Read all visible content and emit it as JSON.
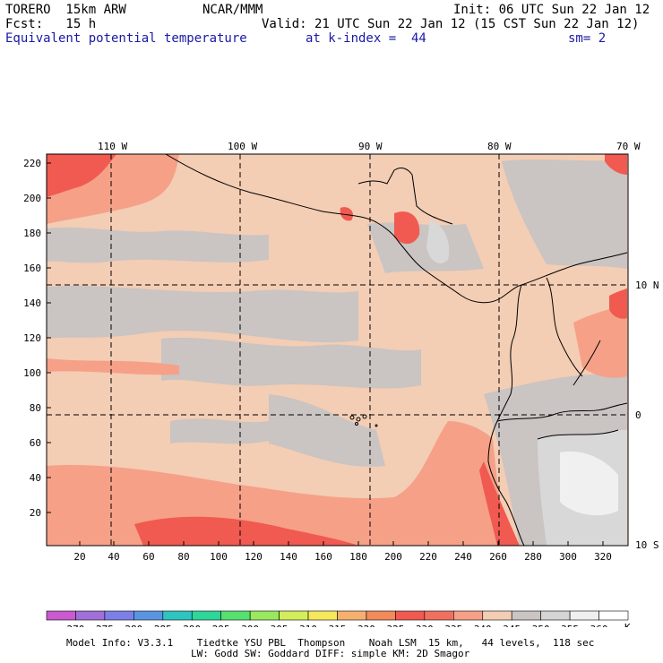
{
  "header": {
    "run": "TORERO  15km ARW",
    "center": "NCAR/MMM",
    "init": "Init: 06 UTC Sun 22 Jan 12",
    "fcst": "Fcst:   15 h",
    "valid": "Valid: 21 UTC Sun 22 Jan 12 (15 CST Sun 22 Jan 12)",
    "field": "Equivalent potential temperature",
    "level": "at k-index =  44",
    "smooth": "sm= 2"
  },
  "map": {
    "top_lon_labels": [
      "110 W",
      "100 W",
      "90 W",
      "80 W",
      "70 W"
    ],
    "right_lat_labels": [
      "10 N",
      "0",
      "10 S"
    ],
    "left_grid_labels": [
      "220",
      "200",
      "180",
      "160",
      "140",
      "120",
      "100",
      "80",
      "60",
      "40",
      "20"
    ],
    "bottom_grid_labels": [
      "20",
      "40",
      "60",
      "80",
      "100",
      "120",
      "140",
      "160",
      "180",
      "200",
      "220",
      "240",
      "260",
      "280",
      "300",
      "320"
    ]
  },
  "colorbar": {
    "unit": "K",
    "labels": [
      "270",
      "275",
      "280",
      "285",
      "290",
      "295",
      "300",
      "305",
      "310",
      "315",
      "320",
      "325",
      "330",
      "335",
      "340",
      "345",
      "350",
      "355",
      "360"
    ],
    "colors": [
      "#c95ad0",
      "#a070d8",
      "#7d7fe8",
      "#5a94e0",
      "#2ec4c0",
      "#2ed69a",
      "#55e070",
      "#9ae860",
      "#d2ee5a",
      "#f5e85c",
      "#f5b070",
      "#f28a5a",
      "#f05a50",
      "#f07060",
      "#f6a088",
      "#f3cdb4",
      "#cac4c2",
      "#d5d5d5",
      "#f0f0f0",
      "#ffffff"
    ]
  },
  "footer": {
    "line1": "Model Info: V3.3.1    Tiedtke YSU PBL  Thompson    Noah LSM  15 km,   44 levels,  118 sec",
    "line2": "LW: Godd SW: Goddard DIFF: simple KM: 2D Smagor"
  }
}
